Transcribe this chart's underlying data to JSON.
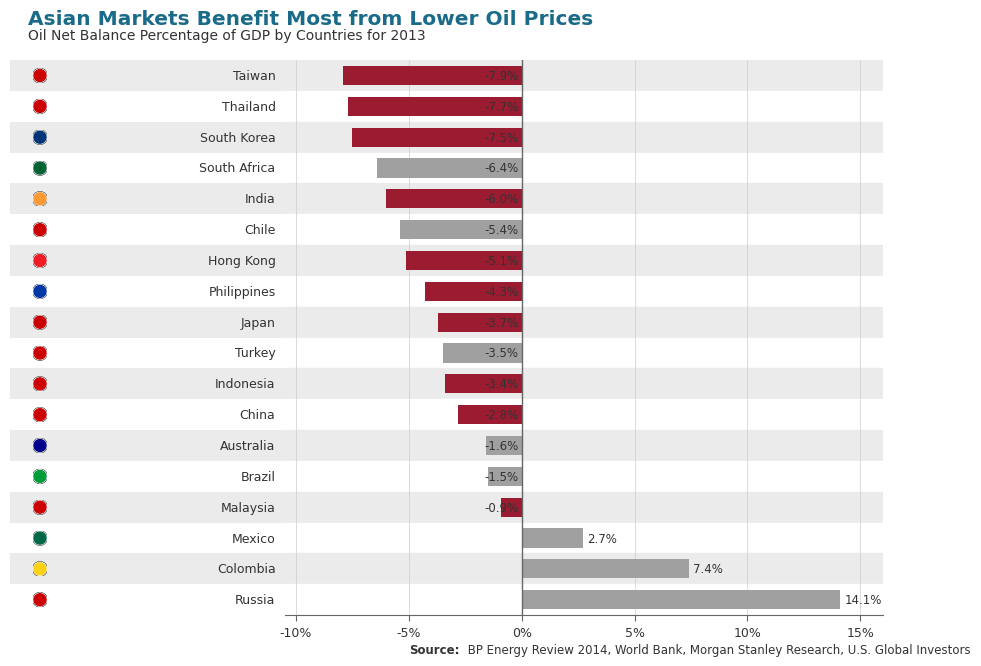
{
  "title": "Asian Markets Benefit Most from Lower Oil Prices",
  "subtitle": "Oil Net Balance Percentage of GDP by Countries for 2013",
  "source_bold": "Source:",
  "source_rest": " BP Energy Review 2014, World Bank, Morgan Stanley Research, U.S. Global Investors",
  "countries": [
    "Taiwan",
    "Thailand",
    "South Korea",
    "South Africa",
    "India",
    "Chile",
    "Hong Kong",
    "Philippines",
    "Japan",
    "Turkey",
    "Indonesia",
    "China",
    "Australia",
    "Brazil",
    "Malaysia",
    "Mexico",
    "Colombia",
    "Russia"
  ],
  "values": [
    -7.9,
    -7.7,
    -7.5,
    -6.4,
    -6.0,
    -5.4,
    -5.1,
    -4.3,
    -3.7,
    -3.5,
    -3.4,
    -2.8,
    -1.6,
    -1.5,
    -0.9,
    2.7,
    7.4,
    14.1
  ],
  "bar_colors": [
    "#9b1b30",
    "#9b1b30",
    "#9b1b30",
    "#a0a0a0",
    "#9b1b30",
    "#a0a0a0",
    "#9b1b30",
    "#9b1b30",
    "#9b1b30",
    "#a0a0a0",
    "#9b1b30",
    "#9b1b30",
    "#a0a0a0",
    "#a0a0a0",
    "#9b1b30",
    "#a0a0a0",
    "#a0a0a0",
    "#a0a0a0"
  ],
  "flag_colors": [
    "#cc0001",
    "#cc0001",
    "#003478",
    "#006233",
    "#ff9933",
    "#cc0001",
    "#ee1c25",
    "#0038a8",
    "#cc0001",
    "#cc0001",
    "#cc0001",
    "#cc0001",
    "#00008b",
    "#009c3b",
    "#cc0001",
    "#006847",
    "#fcd116",
    "#cc0001"
  ],
  "title_color": "#1a6b8a",
  "subtitle_color": "#333333",
  "text_color": "#333333",
  "background_color": "#ffffff",
  "row_bg_even": "#ebebeb",
  "row_bg_odd": "#ffffff",
  "xlim_left": -10.5,
  "xlim_right": 16.0,
  "xticks": [
    -10,
    -5,
    0,
    5,
    10,
    15
  ],
  "xlabels": [
    "-10%",
    "-5%",
    "0%",
    "5%",
    "10%",
    "15%"
  ],
  "title_fontsize": 14.5,
  "subtitle_fontsize": 10,
  "label_fontsize": 9,
  "tick_fontsize": 9,
  "source_fontsize": 8.5,
  "value_label_fontsize": 8.5,
  "bar_height": 0.62
}
